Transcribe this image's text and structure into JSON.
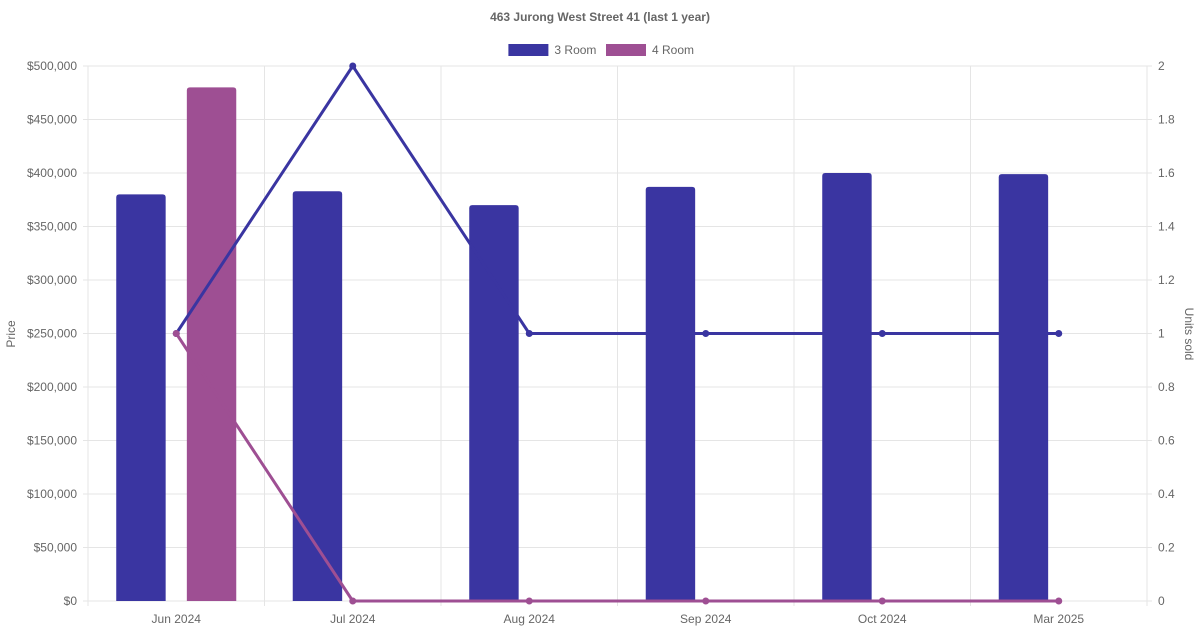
{
  "chart_data": {
    "type": "bar",
    "title": "463 Jurong West Street 41 (last 1 year)",
    "categories": [
      "Jun 2024",
      "Jul 2024",
      "Aug 2024",
      "Sep 2024",
      "Oct 2024",
      "Mar 2025"
    ],
    "ylabel": "Price",
    "y2label": "Units sold",
    "ylim": [
      0,
      500000
    ],
    "y2lim": [
      0,
      2
    ],
    "yticks": [
      "$0",
      "$50,000",
      "$100,000",
      "$150,000",
      "$200,000",
      "$250,000",
      "$300,000",
      "$350,000",
      "$400,000",
      "$450,000",
      "$500,000"
    ],
    "y2ticks": [
      "0",
      "0.2",
      "0.4",
      "0.6",
      "0.8",
      "1",
      "1.2",
      "1.4",
      "1.6",
      "1.8",
      "2"
    ],
    "legend_position": "top-center",
    "grid": true,
    "series": [
      {
        "name": "3 Room",
        "color": "#3a35a1",
        "price": [
          380000,
          383000,
          370000,
          387000,
          400000,
          399000
        ],
        "units_sold": [
          1,
          2,
          1,
          1,
          1,
          1
        ]
      },
      {
        "name": "4 Room",
        "color": "#9e4f93",
        "price": [
          480000,
          null,
          null,
          null,
          null,
          null
        ],
        "units_sold": [
          1,
          0,
          0,
          0,
          0,
          0
        ]
      }
    ]
  }
}
